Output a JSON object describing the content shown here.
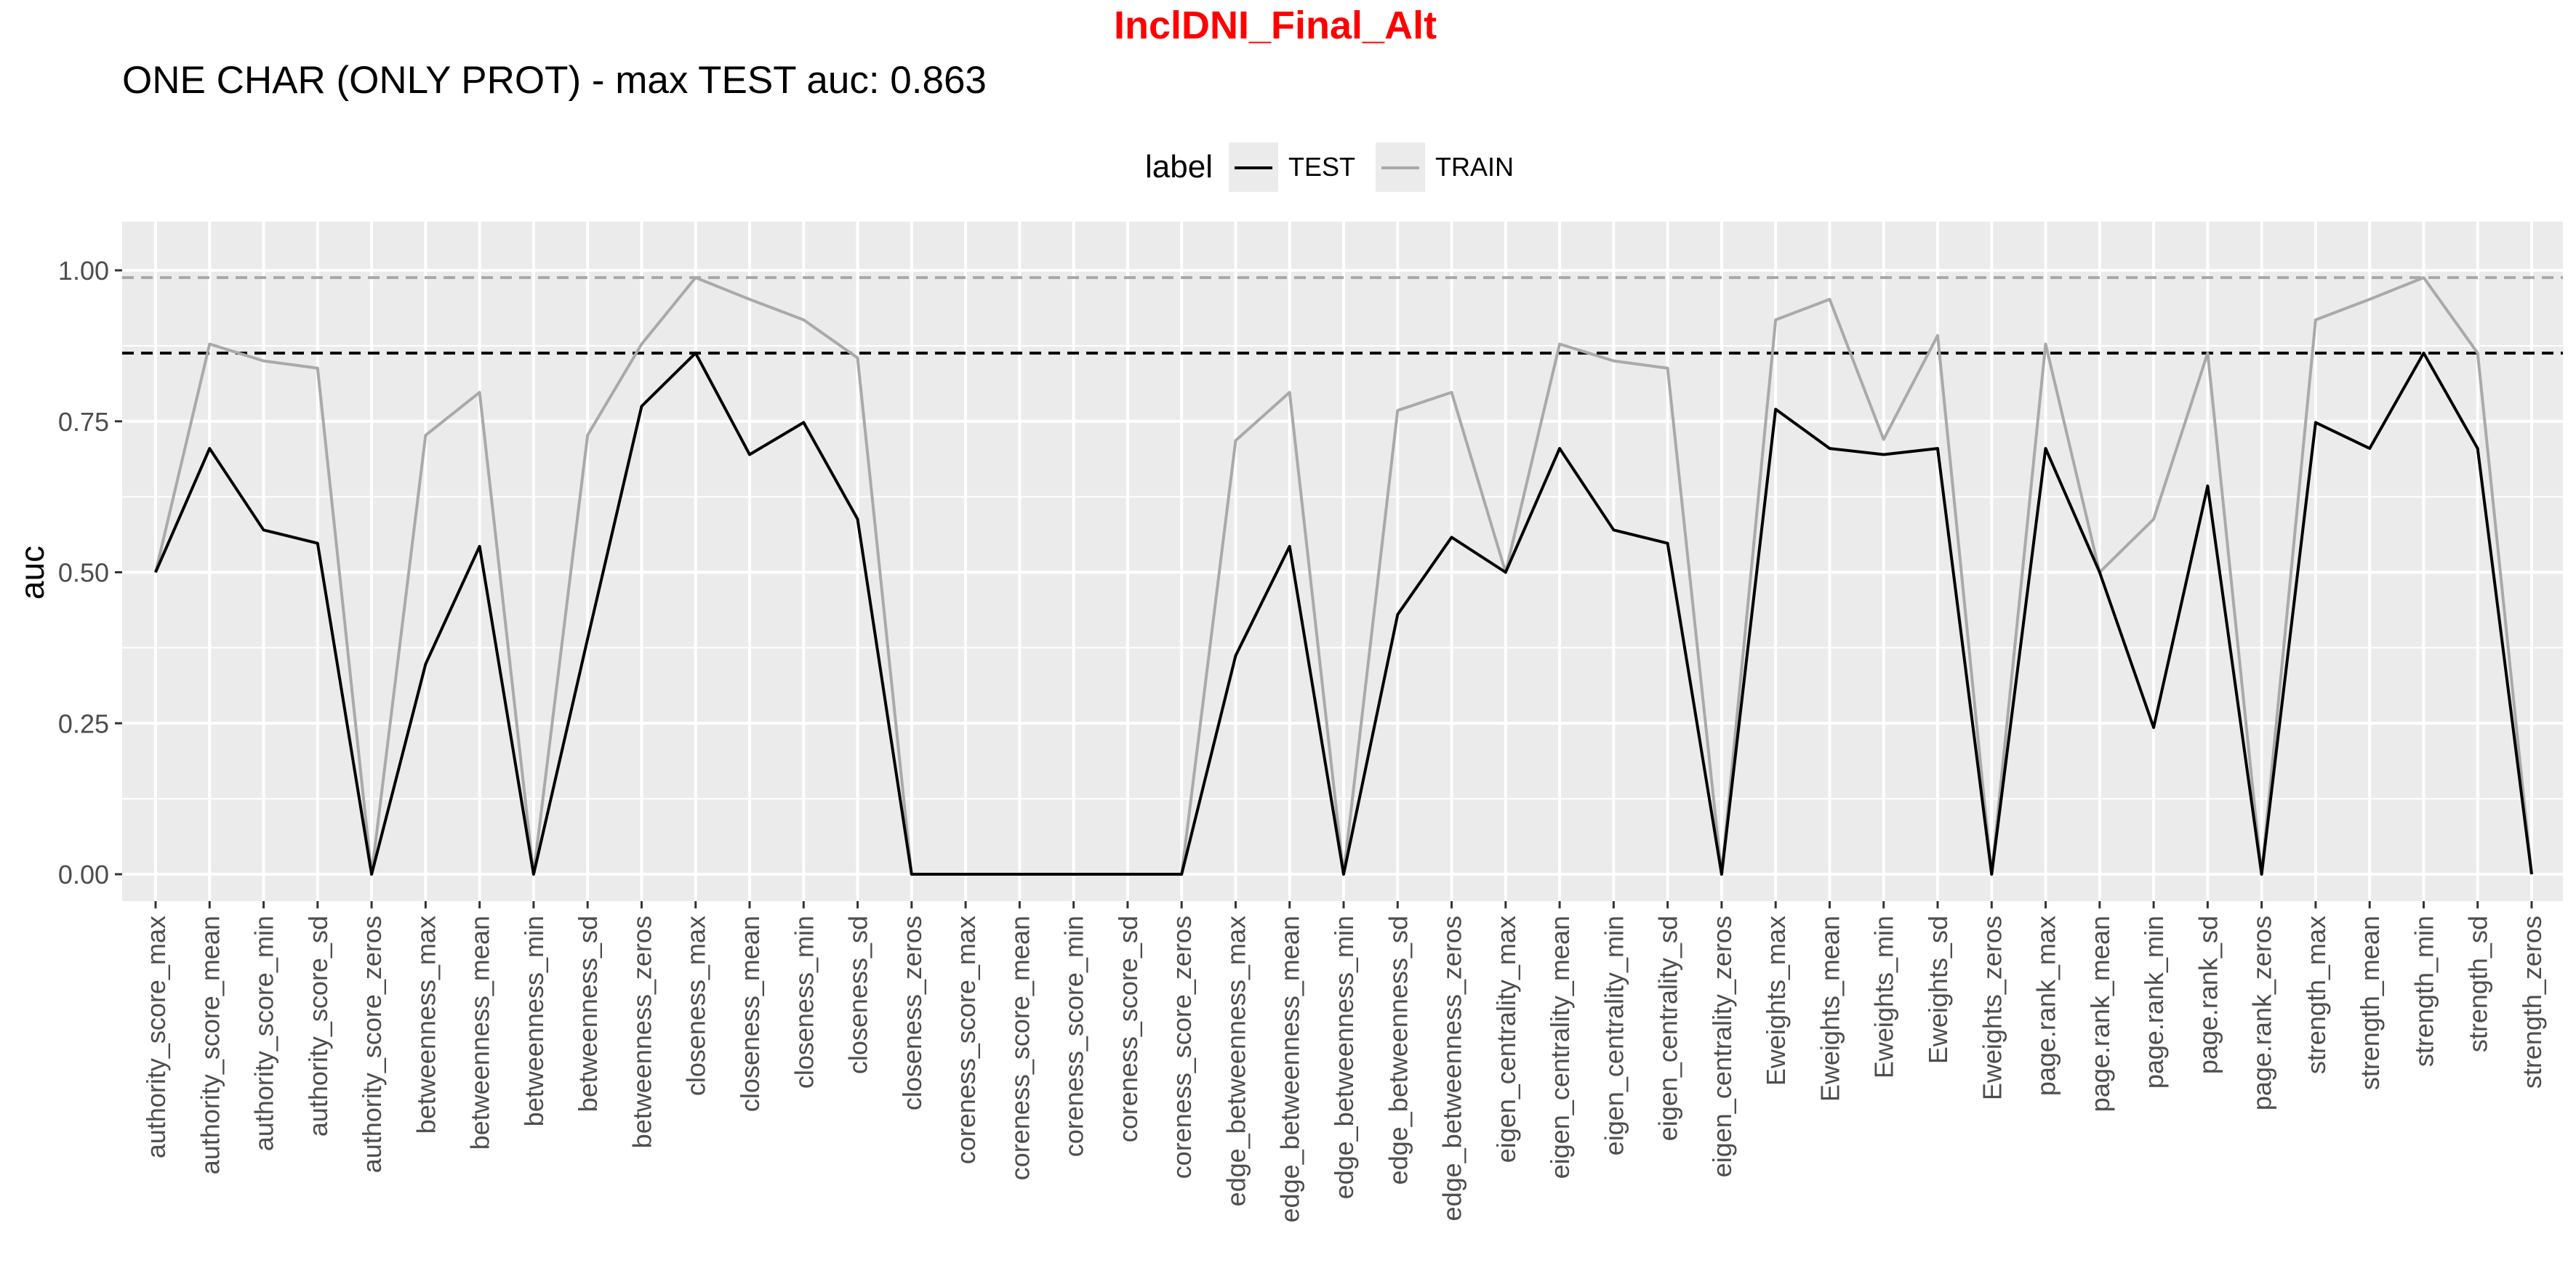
{
  "title": "InclDNI_Final_Alt",
  "subtitle": "ONE CHAR (ONLY PROT) - max TEST auc: 0.863",
  "legend": {
    "title": "label",
    "items": [
      {
        "label": "TEST",
        "color": "#000000"
      },
      {
        "label": "TRAIN",
        "color": "#a9a9a9"
      }
    ]
  },
  "chart_data": {
    "type": "line",
    "title": "InclDNI_Final_Alt",
    "subtitle": "ONE CHAR (ONLY PROT) - max TEST auc: 0.863",
    "xlabel": "",
    "ylabel": "auc",
    "ylim": [
      -0.02,
      1.06
    ],
    "yticks": [
      "0.00",
      "0.25",
      "0.50",
      "0.75",
      "1.00"
    ],
    "grid": true,
    "legend_position": "top",
    "categories": [
      "authority_score_max",
      "authority_score_mean",
      "authority_score_min",
      "authority_score_sd",
      "authority_score_zeros",
      "betweenness_max",
      "betweenness_mean",
      "betweenness_min",
      "betweenness_sd",
      "betweenness_zeros",
      "closeness_max",
      "closeness_mean",
      "closeness_min",
      "closeness_sd",
      "closeness_zeros",
      "coreness_score_max",
      "coreness_score_mean",
      "coreness_score_min",
      "coreness_score_sd",
      "coreness_score_zeros",
      "edge_betweenness_max",
      "edge_betweenness_mean",
      "edge_betweenness_min",
      "edge_betweenness_sd",
      "edge_betweenness_zeros",
      "eigen_centrality_max",
      "eigen_centrality_mean",
      "eigen_centrality_min",
      "eigen_centrality_sd",
      "eigen_centrality_zeros",
      "Eweights_max",
      "Eweights_mean",
      "Eweights_min",
      "Eweights_sd",
      "Eweights_zeros",
      "page.rank_max",
      "page.rank_mean",
      "page.rank_min",
      "page.rank_sd",
      "page.rank_zeros",
      "strength_max",
      "strength_mean",
      "strength_min",
      "strength_sd",
      "strength_zeros"
    ],
    "series": [
      {
        "name": "TEST",
        "color": "#000000",
        "values": [
          0.5,
          0.705,
          0.57,
          0.548,
          0.0,
          0.348,
          0.543,
          0.0,
          0.39,
          0.775,
          0.863,
          0.695,
          0.748,
          0.588,
          0.0,
          0.0,
          0.0,
          0.0,
          0.0,
          0.0,
          0.362,
          0.543,
          0.0,
          0.43,
          0.558,
          0.5,
          0.705,
          0.57,
          0.548,
          0.0,
          0.77,
          0.705,
          0.695,
          0.705,
          0.0,
          0.705,
          0.5,
          0.243,
          0.643,
          0.0,
          0.748,
          0.705,
          0.863,
          0.705,
          0.0
        ]
      },
      {
        "name": "TRAIN",
        "color": "#a9a9a9",
        "values": [
          0.5,
          0.878,
          0.85,
          0.838,
          0.0,
          0.727,
          0.798,
          0.0,
          0.727,
          0.878,
          0.988,
          0.952,
          0.918,
          0.855,
          0.0,
          0.0,
          0.0,
          0.0,
          0.0,
          0.0,
          0.718,
          0.798,
          0.0,
          0.768,
          0.798,
          0.5,
          0.878,
          0.85,
          0.838,
          0.0,
          0.918,
          0.952,
          0.72,
          0.892,
          0.0,
          0.878,
          0.5,
          0.588,
          0.863,
          0.0,
          0.918,
          0.952,
          0.988,
          0.863,
          0.0
        ]
      }
    ],
    "reference_lines": [
      {
        "y": 0.988,
        "color": "#a9a9a9",
        "style": "dashed"
      },
      {
        "y": 0.863,
        "color": "#000000",
        "style": "dashed"
      }
    ]
  }
}
